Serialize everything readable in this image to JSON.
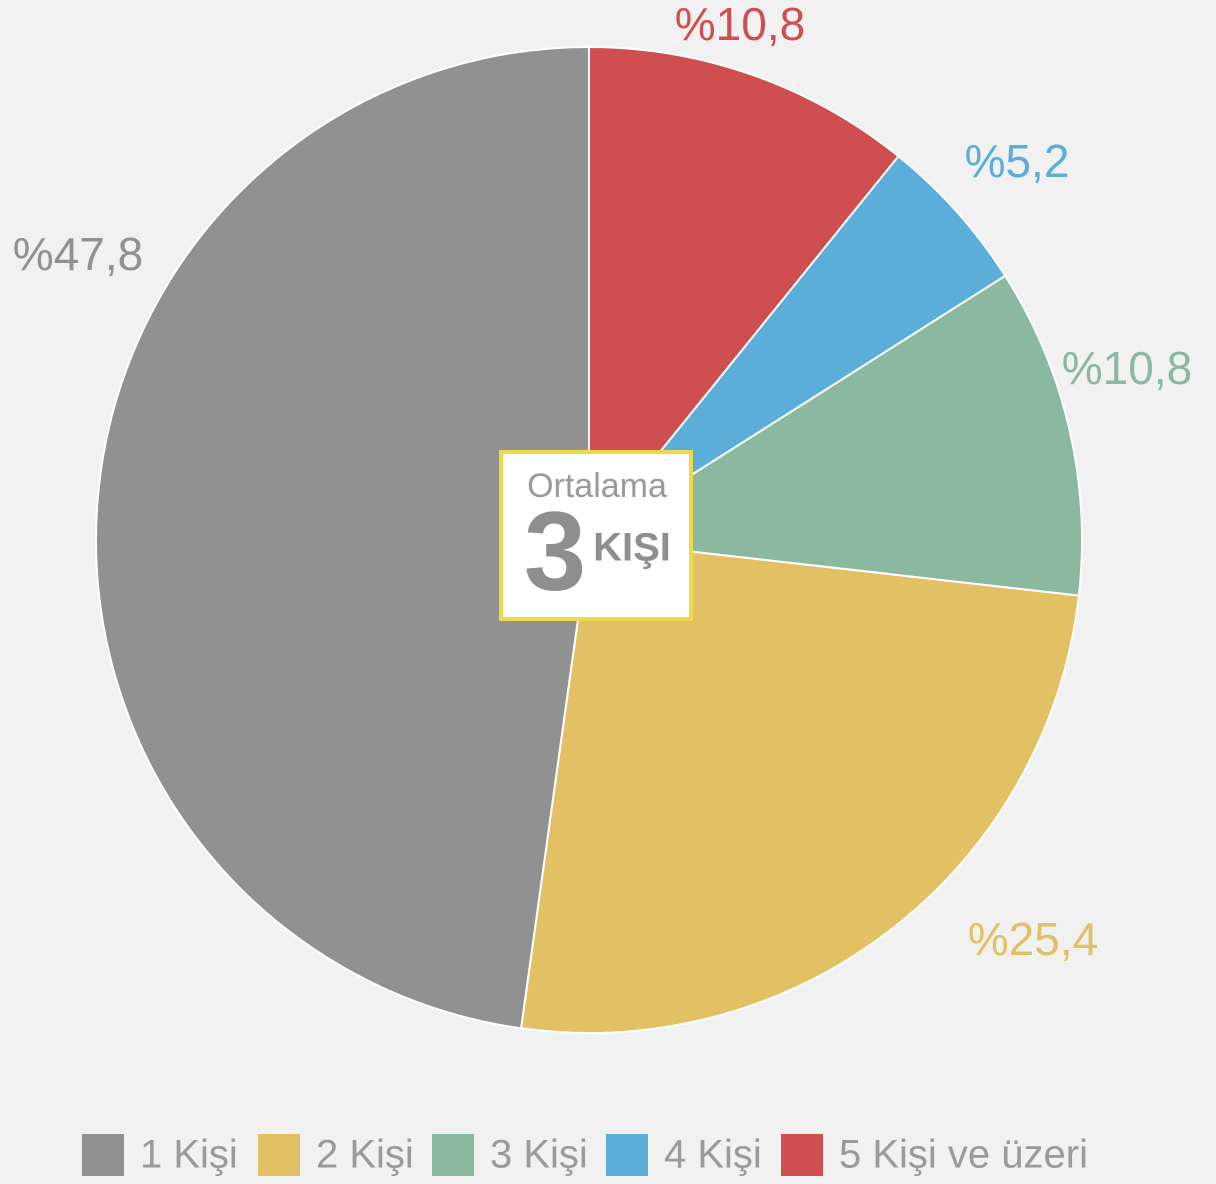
{
  "chart_data": {
    "type": "pie",
    "categories": [
      "1 Kişi",
      "2 Kişi",
      "3 Kişi",
      "4 Kişi",
      "5 Kişi ve üzeri"
    ],
    "values": [
      47.8,
      25.4,
      10.8,
      5.2,
      10.8
    ],
    "value_labels": [
      "%47,8",
      "%25,4",
      "%10,8",
      "%5,2",
      "%10,8"
    ],
    "colors": [
      "#919191",
      "#e2c064",
      "#8bb9a0",
      "#5aaed9",
      "#cf4f51"
    ],
    "annotations": [
      "Ortalama",
      "3",
      "KIŞI"
    ],
    "legend": "bottom"
  }
}
